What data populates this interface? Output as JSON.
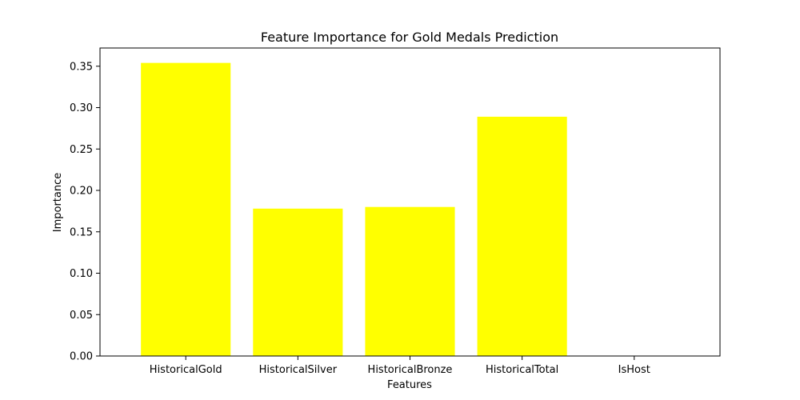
{
  "chart_data": {
    "type": "bar",
    "title": "Feature Importance for Gold Medals Prediction",
    "xlabel": "Features",
    "ylabel": "Importance",
    "categories": [
      "HistoricalGold",
      "HistoricalSilver",
      "HistoricalBronze",
      "HistoricalTotal",
      "IsHost"
    ],
    "values": [
      0.354,
      0.178,
      0.18,
      0.289,
      0.0
    ],
    "ylim": [
      0,
      0.372
    ],
    "yticks": [
      0.0,
      0.05,
      0.1,
      0.15,
      0.2,
      0.25,
      0.3,
      0.35
    ],
    "ytick_labels": [
      "0.00",
      "0.05",
      "0.10",
      "0.15",
      "0.20",
      "0.25",
      "0.30",
      "0.35"
    ],
    "bar_color": "#ffff00",
    "grid": false,
    "legend": "none"
  }
}
